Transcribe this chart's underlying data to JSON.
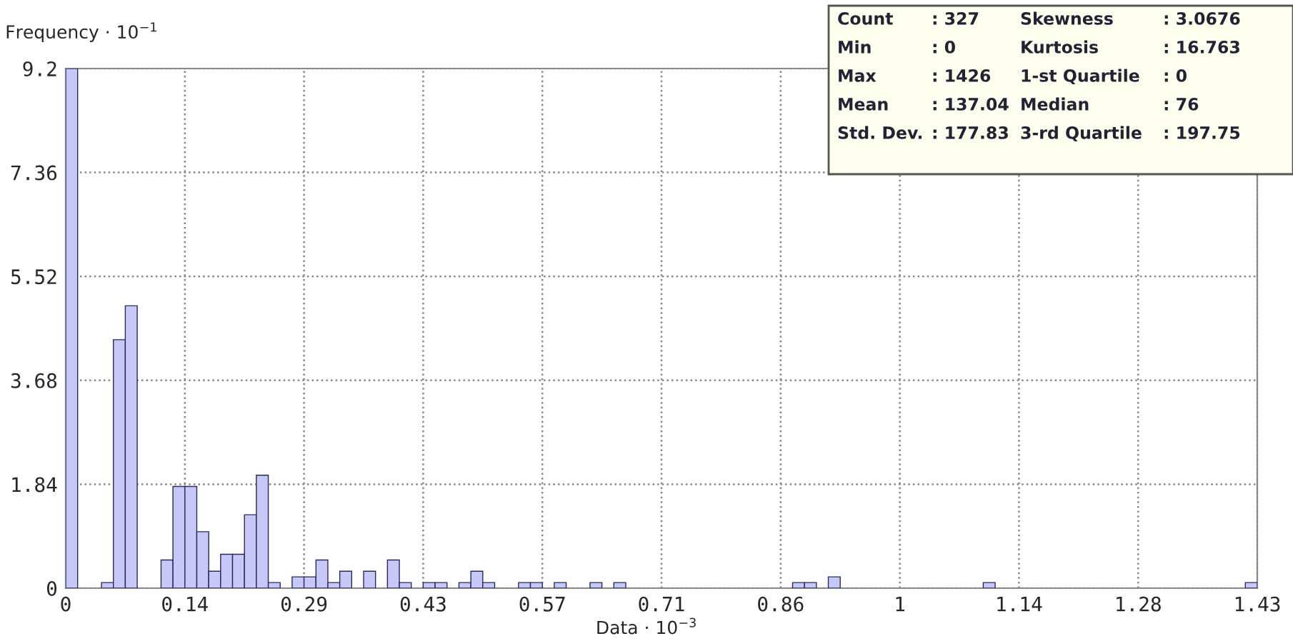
{
  "chart_data": {
    "type": "histogram",
    "xlabel": "Data · 10$^{−3}$",
    "ylabel": "Frequency · 10$^{−1}$",
    "bins": [
      0,
      0.01426,
      0.02852,
      0.04278,
      0.05704,
      0.0713,
      0.08556,
      0.09982,
      0.11408,
      0.12834,
      0.1426,
      0.15686,
      0.17112,
      0.18538,
      0.19964,
      0.2139,
      0.22816,
      0.24242,
      0.25668,
      0.27094,
      0.2852,
      0.29946,
      0.31372,
      0.32798,
      0.34224,
      0.3565,
      0.37076,
      0.38502,
      0.39928,
      0.41354,
      0.4278,
      0.44206,
      0.45632,
      0.47058,
      0.48484,
      0.4991,
      0.51336,
      0.52762,
      0.54188,
      0.55614,
      0.5704,
      0.58466,
      0.59892,
      0.61318,
      0.62744,
      0.6417,
      0.65596,
      0.67022,
      0.68448,
      0.69874,
      0.713,
      0.72726,
      0.74152,
      0.75578,
      0.77004,
      0.7843,
      0.79856,
      0.81282,
      0.82708,
      0.84134,
      0.8556,
      0.86986,
      0.88412,
      0.89838,
      0.91264,
      0.9269,
      0.94116,
      0.95542,
      0.96968,
      0.98394,
      0.9982,
      1.01246,
      1.02672,
      1.04098,
      1.05524,
      1.0695,
      1.08376,
      1.09802,
      1.11228,
      1.12654,
      1.1408,
      1.15506,
      1.16932,
      1.18358,
      1.19784,
      1.2121,
      1.22636,
      1.24062,
      1.25488,
      1.26914,
      1.2834,
      1.29766,
      1.31192,
      1.32618,
      1.34044,
      1.3547,
      1.36896,
      1.38322,
      1.39748,
      1.41174,
      1.426
    ],
    "values": [
      9.2,
      0,
      0,
      0.1,
      4.4,
      5.0,
      0,
      0,
      0.5,
      1.8,
      1.8,
      1.0,
      0.3,
      0.6,
      0.6,
      1.3,
      2.0,
      0.1,
      0,
      0.2,
      0.2,
      0.5,
      0.1,
      0.3,
      0,
      0.3,
      0,
      0.5,
      0.1,
      0,
      0.1,
      0.1,
      0,
      0.1,
      0.3,
      0.1,
      0,
      0,
      0.1,
      0.1,
      0,
      0.1,
      0,
      0,
      0.1,
      0,
      0.1,
      0,
      0,
      0,
      0,
      0,
      0,
      0,
      0,
      0,
      0,
      0,
      0,
      0,
      0,
      0.1,
      0.1,
      0,
      0.2,
      0,
      0,
      0,
      0,
      0,
      0,
      0,
      0,
      0,
      0,
      0,
      0,
      0.1,
      0,
      0,
      0,
      0,
      0,
      0,
      0,
      0,
      0,
      0,
      0,
      0,
      0,
      0,
      0,
      0,
      0,
      0,
      0,
      0,
      0,
      0.1
    ],
    "color": "#c8c8f8",
    "xlim": [
      0,
      1.426
    ],
    "xticks": [
      0,
      {
        "value": 0.1426,
        "label": "0.14"
      },
      {
        "value": 0.2852,
        "label": "0.29"
      },
      {
        "value": 0.4278,
        "label": "0.43"
      },
      {
        "value": 0.5704,
        "label": "0.57"
      },
      {
        "value": 0.713,
        "label": "0.71"
      },
      {
        "value": 0.8556,
        "label": "0.86"
      },
      {
        "value": 0.9982,
        "label": "1"
      },
      {
        "value": 1.1408,
        "label": "1.14"
      },
      {
        "value": 1.2834,
        "label": "1.28"
      },
      {
        "value": 1.426,
        "label": "1.43"
      }
    ],
    "ylim": [
      0,
      9.2
    ],
    "yticks": [
      0,
      1.84,
      3.68,
      5.52,
      7.36,
      9.2
    ],
    "grid": true,
    "annotations": [
      "Count",
      ": 327",
      "Skewness",
      ": 3.0676",
      "Min",
      ": 0",
      "Kurtosis",
      ": 16.763",
      "Max",
      ": 1426",
      "1-st Quartile",
      ": 0",
      "Mean",
      ": 137.04",
      "Median",
      ": 76",
      "Std. Dev.",
      ": 177.83",
      "3-rd Quartile",
      ": 197.75"
    ]
  }
}
